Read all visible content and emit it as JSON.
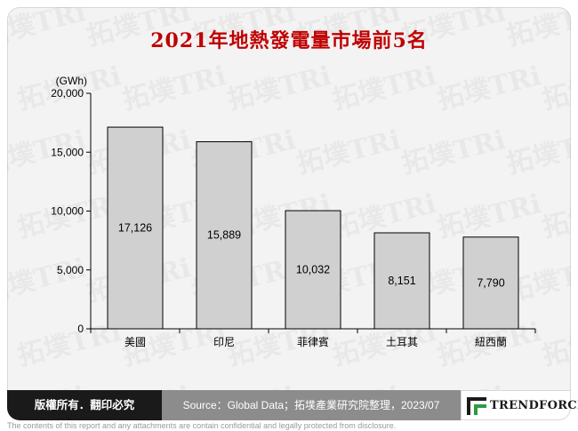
{
  "header": {
    "title": "2021年地熱發電量市場前5名"
  },
  "chart_data": {
    "type": "bar",
    "title": "2021年地熱發電量市場前5名",
    "unit": "(GWh)",
    "categories": [
      "美國",
      "印尼",
      "菲律賓",
      "土耳其",
      "紐西蘭"
    ],
    "values": [
      17126,
      15889,
      10032,
      8151,
      7790
    ],
    "value_labels": [
      "17,126",
      "15,889",
      "10,032",
      "8,151",
      "7,790"
    ],
    "ylim": [
      0,
      20000
    ],
    "yticks": [
      0,
      5000,
      10000,
      15000,
      20000
    ],
    "ytick_labels": [
      "0",
      "5,000",
      "10,000",
      "15,000",
      "20,000"
    ],
    "grid": false,
    "bar_color": "#d0d0d0",
    "bar_stroke": "#000000"
  },
  "footer": {
    "copyright": "版權所有．翻印必究",
    "source": "Source：Global Data；拓墣產業研究院整理，2023/07",
    "brand": "TRENDFORCE"
  },
  "disclaimer": "The contents of this report and any attachments are contain confidential and legally protected from disclosure.",
  "watermark": {
    "text": "拓墣TRi"
  },
  "colors": {
    "title": "#c00000",
    "footer_dark": "#1a1a1a",
    "footer_gray": "#8c8c8c",
    "logo_green": "#2e9a45"
  }
}
